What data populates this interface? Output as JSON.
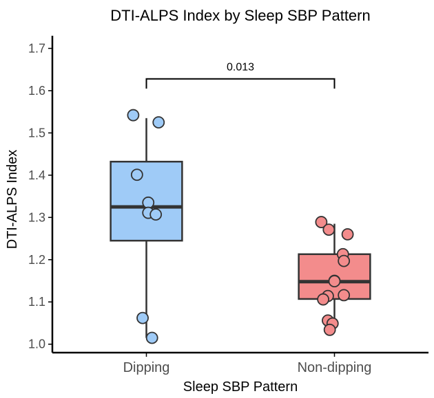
{
  "chart_data": {
    "type": "box",
    "title": "DTI-ALPS Index by Sleep SBP Pattern",
    "xlabel": "Sleep SBP Pattern",
    "ylabel": "DTI-ALPS Index",
    "ylim": [
      0.98,
      1.73
    ],
    "yticks": [
      "1.0",
      "1.1",
      "1.2",
      "1.3",
      "1.4",
      "1.5",
      "1.6",
      "1.7"
    ],
    "categories": [
      "Dipping",
      "Non-dipping"
    ],
    "groups": [
      {
        "category": "Dipping",
        "color": "#9fcbf7",
        "box": {
          "whisker_low": 1.015,
          "q1": 1.245,
          "median": 1.325,
          "q3": 1.432,
          "whisker_high": 1.535
        },
        "points": [
          1.542,
          1.525,
          1.401,
          1.335,
          1.311,
          1.307,
          1.062,
          1.015
        ]
      },
      {
        "category": "Non-dipping",
        "color": "#f38c8c",
        "box": {
          "whisker_low": 1.03,
          "q1": 1.107,
          "median": 1.148,
          "q3": 1.213,
          "whisker_high": 1.285
        },
        "points": [
          1.289,
          1.271,
          1.26,
          1.213,
          1.197,
          1.15,
          1.149,
          1.116,
          1.114,
          1.106,
          1.056,
          1.049,
          1.034
        ]
      }
    ],
    "annotations": [
      {
        "type": "significance",
        "between": [
          "Dipping",
          "Non-dipping"
        ],
        "label": "0.013"
      }
    ],
    "grid": false,
    "legend": "none"
  }
}
